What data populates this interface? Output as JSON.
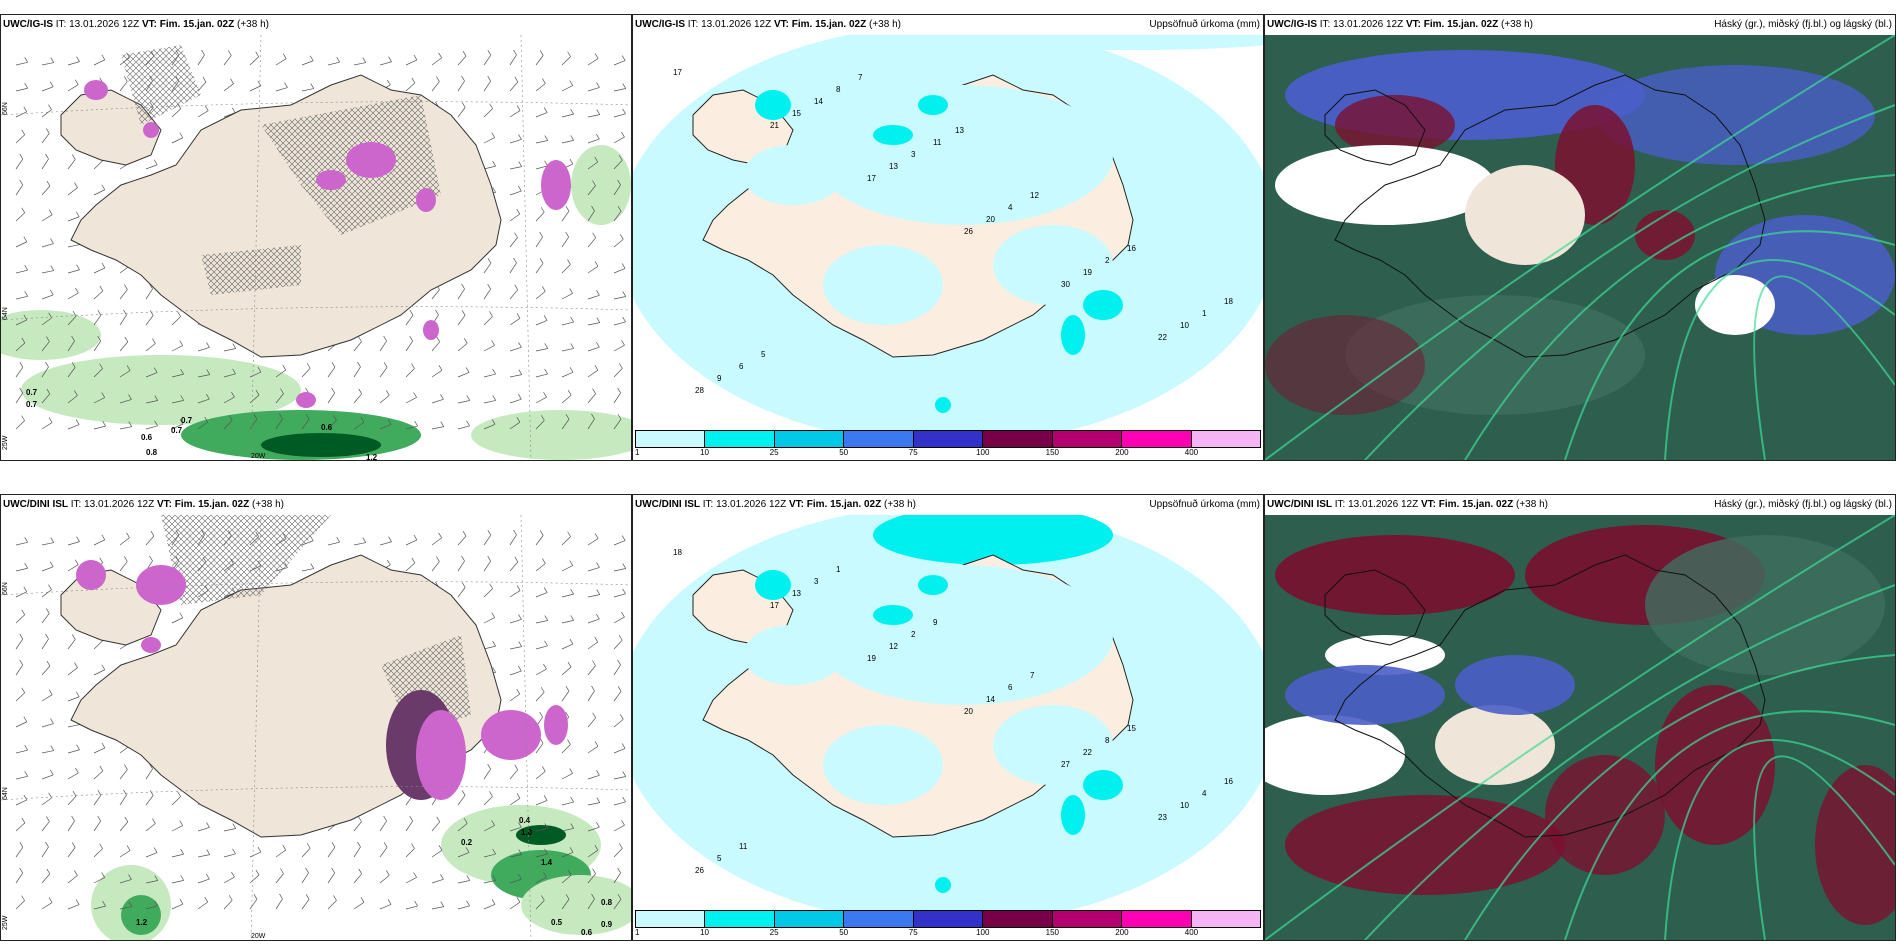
{
  "panels": [
    {
      "model": "UWC/IG-IS",
      "it": "IT: 13.01.2026 12Z",
      "vt": "VT: Fim. 15.jan. 02Z",
      "lead": "(+38 h)",
      "title": ""
    },
    {
      "model": "UWC/IG-IS",
      "it": "IT: 13.01.2026 12Z",
      "vt": "VT: Fim. 15.jan. 02Z",
      "lead": "(+38 h)",
      "title": "Uppsöfnuð úrkoma (mm)"
    },
    {
      "model": "UWC/IG-IS",
      "it": "IT: 13.01.2026 12Z",
      "vt": "VT: Fim. 15.jan. 02Z",
      "lead": "(+38 h)",
      "title": "Háský (gr.), miðský (fj.bl.) og lágský (bl.)"
    },
    {
      "model": "UWC/DINI ISL",
      "it": "IT: 13.01.2026 12Z",
      "vt": "VT: Fim. 15.jan. 02Z",
      "lead": "(+38 h)",
      "title": ""
    },
    {
      "model": "UWC/DINI ISL",
      "it": "IT: 13.01.2026 12Z",
      "vt": "VT: Fim. 15.jan. 02Z",
      "lead": "(+38 h)",
      "title": "Uppsöfnuð úrkoma (mm)"
    },
    {
      "model": "UWC/DINI ISL",
      "it": "IT: 13.01.2026 12Z",
      "vt": "VT: Fim. 15.jan. 02Z",
      "lead": "(+38 h)",
      "title": "Háský (gr.), miðský (fj.bl.) og lágský (bl.)"
    }
  ],
  "legend": {
    "labels": [
      "1",
      "10",
      "25",
      "50",
      "75",
      "100",
      "150",
      "200",
      "400"
    ],
    "colors": [
      "#c8faff",
      "#00f0f0",
      "#00c8e6",
      "#3c78f0",
      "#3232c8",
      "#780046",
      "#b4006e",
      "#ff00b4",
      "#f5b4f5"
    ]
  },
  "axis_labels": {
    "lat66": "66N",
    "lat64": "64N",
    "lon25": "25W",
    "lon20": "20W"
  },
  "wind_values_top": [
    "0.7",
    "0.7",
    "0.7",
    "0.6",
    "0.7",
    "0.8",
    "1.2",
    "0.6"
  ],
  "wind_values_bottom": [
    "1.0",
    "0.4",
    "0.8",
    "0.5",
    "0.9",
    "0.6",
    "1.2",
    "1.4",
    "0.2"
  ],
  "precip_top": [
    "17",
    "21",
    "17",
    "26",
    "30",
    "22",
    "28",
    "15",
    "13",
    "20",
    "19",
    "10",
    "9",
    "14",
    "3",
    "4",
    "2",
    "1",
    "6",
    "8",
    "11",
    "12",
    "16",
    "18",
    "5",
    "7",
    "13"
  ],
  "precip_bottom": [
    "18",
    "17",
    "19",
    "20",
    "27",
    "23",
    "26",
    "13",
    "12",
    "14",
    "22",
    "10",
    "5",
    "3",
    "2",
    "6",
    "8",
    "4",
    "11",
    "1",
    "9",
    "7",
    "15",
    "16"
  ],
  "colors": {
    "land": "#efe5d8",
    "sea": "#ffffff",
    "precip_light": "#c8faff",
    "precip_mid": "#00f0f0",
    "hatch": "#666666",
    "wind_green_light": "#c7e9c0",
    "wind_green": "#41ab5d",
    "wind_green_dark": "#005a24",
    "purple": "#cc66cc",
    "cloud_dark": "#2e5e4e",
    "cloud_mid": "#4a5ec8",
    "cloud_red": "#7a1030"
  }
}
